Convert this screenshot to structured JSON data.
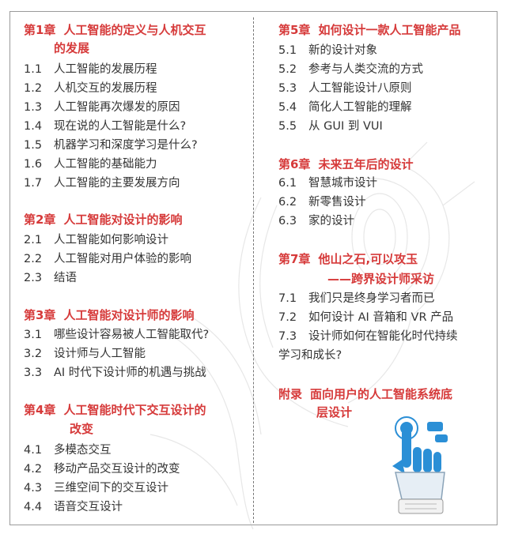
{
  "left": {
    "chapters": [
      {
        "num": "第1章",
        "title": "人工智能的定义与人机交互",
        "title_cont": "的发展",
        "items": [
          {
            "num": "1.1",
            "text": "人工智能的发展历程"
          },
          {
            "num": "1.2",
            "text": "人机交互的发展历程"
          },
          {
            "num": "1.3",
            "text": "人工智能再次爆发的原因"
          },
          {
            "num": "1.4",
            "text": "现在说的人工智能是什么?"
          },
          {
            "num": "1.5",
            "text": "机器学习和深度学习是什么?"
          },
          {
            "num": "1.6",
            "text": "人工智能的基础能力"
          },
          {
            "num": "1.7",
            "text": "人工智能的主要发展方向"
          }
        ]
      },
      {
        "num": "第2章",
        "title": "人工智能对设计的影响",
        "items": [
          {
            "num": "2.1",
            "text": "人工智能如何影响设计"
          },
          {
            "num": "2.2",
            "text": "人工智能对用户体验的影响"
          },
          {
            "num": "2.3",
            "text": "结语"
          }
        ]
      },
      {
        "num": "第3章",
        "title": "人工智能对设计师的影响",
        "items": [
          {
            "num": "3.1",
            "text": "哪些设计容易被人工智能取代?"
          },
          {
            "num": "3.2",
            "text": "设计师与人工智能"
          },
          {
            "num": "3.3",
            "text": "AI 时代下设计师的机遇与挑战"
          }
        ]
      },
      {
        "num": "第4章",
        "title": "人工智能时代下交互设计的",
        "title_cont": "改变",
        "items": [
          {
            "num": "4.1",
            "text": "多模态交互"
          },
          {
            "num": "4.2",
            "text": "移动产品交互设计的改变"
          },
          {
            "num": "4.3",
            "text": "三维空间下的交互设计"
          },
          {
            "num": "4.4",
            "text": "语音交互设计"
          }
        ]
      }
    ]
  },
  "right": {
    "chapters": [
      {
        "num": "第5章",
        "title": "如何设计一款人工智能产品",
        "items": [
          {
            "num": "5.1",
            "text": "新的设计对象"
          },
          {
            "num": "5.2",
            "text": "参考与人类交流的方式"
          },
          {
            "num": "5.3",
            "text": "人工智能设计八原则"
          },
          {
            "num": "5.4",
            "text": "简化人工智能的理解"
          },
          {
            "num": "5.5",
            "text": "从 GUI 到 VUI"
          }
        ]
      },
      {
        "num": "第6章",
        "title": "未来五年后的设计",
        "items": [
          {
            "num": "6.1",
            "text": "智慧城市设计"
          },
          {
            "num": "6.2",
            "text": "新零售设计"
          },
          {
            "num": "6.3",
            "text": "家的设计"
          }
        ]
      },
      {
        "num": "第7章",
        "title": "他山之石,可以攻玉",
        "title_cont": "——跨界设计师采访",
        "items": [
          {
            "num": "7.1",
            "text": "我们只是终身学习者而已"
          },
          {
            "num": "7.2",
            "text": "如何设计 AI 音箱和 VR 产品"
          },
          {
            "num": "7.3",
            "text": "设计师如何在智能化时代持续",
            "text_cont": "学习和成长?"
          }
        ]
      },
      {
        "num": "附录",
        "title": "面向用户的人工智能系统底",
        "title_cont": "层设计",
        "items": []
      }
    ]
  },
  "art": {
    "accent": "#d63a3a",
    "hand_blue": "#2b8fd6",
    "icon": "hand-touch-icon"
  }
}
